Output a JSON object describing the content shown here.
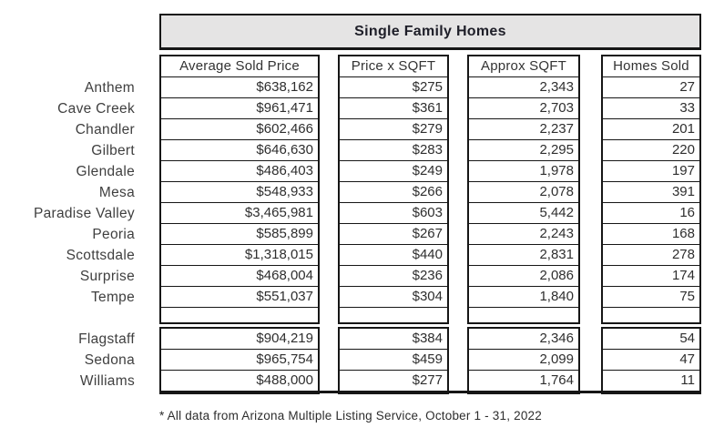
{
  "footnote": "* All data from Arizona Multiple Listing Service, October 1 - 31, 2022",
  "colors": {
    "title_bg": "#e5e4e4",
    "border": "#161616",
    "text": "#2e2e2e",
    "label_text": "#3f3f3f",
    "background": "#ffffff"
  },
  "chart_data": {
    "type": "table",
    "title": "Single Family Homes",
    "columns": [
      "Average Sold Price",
      "Price x SQFT",
      "Approx SQFT",
      "Homes Sold"
    ],
    "row_groups": [
      {
        "rows": [
          {
            "city": "Anthem",
            "values": [
              "$638,162",
              "$275",
              "2,343",
              "27"
            ]
          },
          {
            "city": "Cave Creek",
            "values": [
              "$961,471",
              "$361",
              "2,703",
              "33"
            ]
          },
          {
            "city": "Chandler",
            "values": [
              "$602,466",
              "$279",
              "2,237",
              "201"
            ]
          },
          {
            "city": "Gilbert",
            "values": [
              "$646,630",
              "$283",
              "2,295",
              "220"
            ]
          },
          {
            "city": "Glendale",
            "values": [
              "$486,403",
              "$249",
              "1,978",
              "197"
            ]
          },
          {
            "city": "Mesa",
            "values": [
              "$548,933",
              "$266",
              "2,078",
              "391"
            ]
          },
          {
            "city": "Paradise Valley",
            "values": [
              "$3,465,981",
              "$603",
              "5,442",
              "16"
            ]
          },
          {
            "city": "Peoria",
            "values": [
              "$585,899",
              "$267",
              "2,243",
              "168"
            ]
          },
          {
            "city": "Scottsdale",
            "values": [
              "$1,318,015",
              "$440",
              "2,831",
              "278"
            ]
          },
          {
            "city": "Surprise",
            "values": [
              "$468,004",
              "$236",
              "2,086",
              "174"
            ]
          },
          {
            "city": "Tempe",
            "values": [
              "$551,037",
              "$304",
              "1,840",
              "75"
            ]
          }
        ]
      },
      {
        "rows": [
          {
            "city": "Flagstaff",
            "values": [
              "$904,219",
              "$384",
              "2,346",
              "54"
            ]
          },
          {
            "city": "Sedona",
            "values": [
              "$965,754",
              "$459",
              "2,099",
              "47"
            ]
          },
          {
            "city": "Williams",
            "values": [
              "$488,000",
              "$277",
              "1,764",
              "11"
            ]
          }
        ]
      }
    ]
  }
}
